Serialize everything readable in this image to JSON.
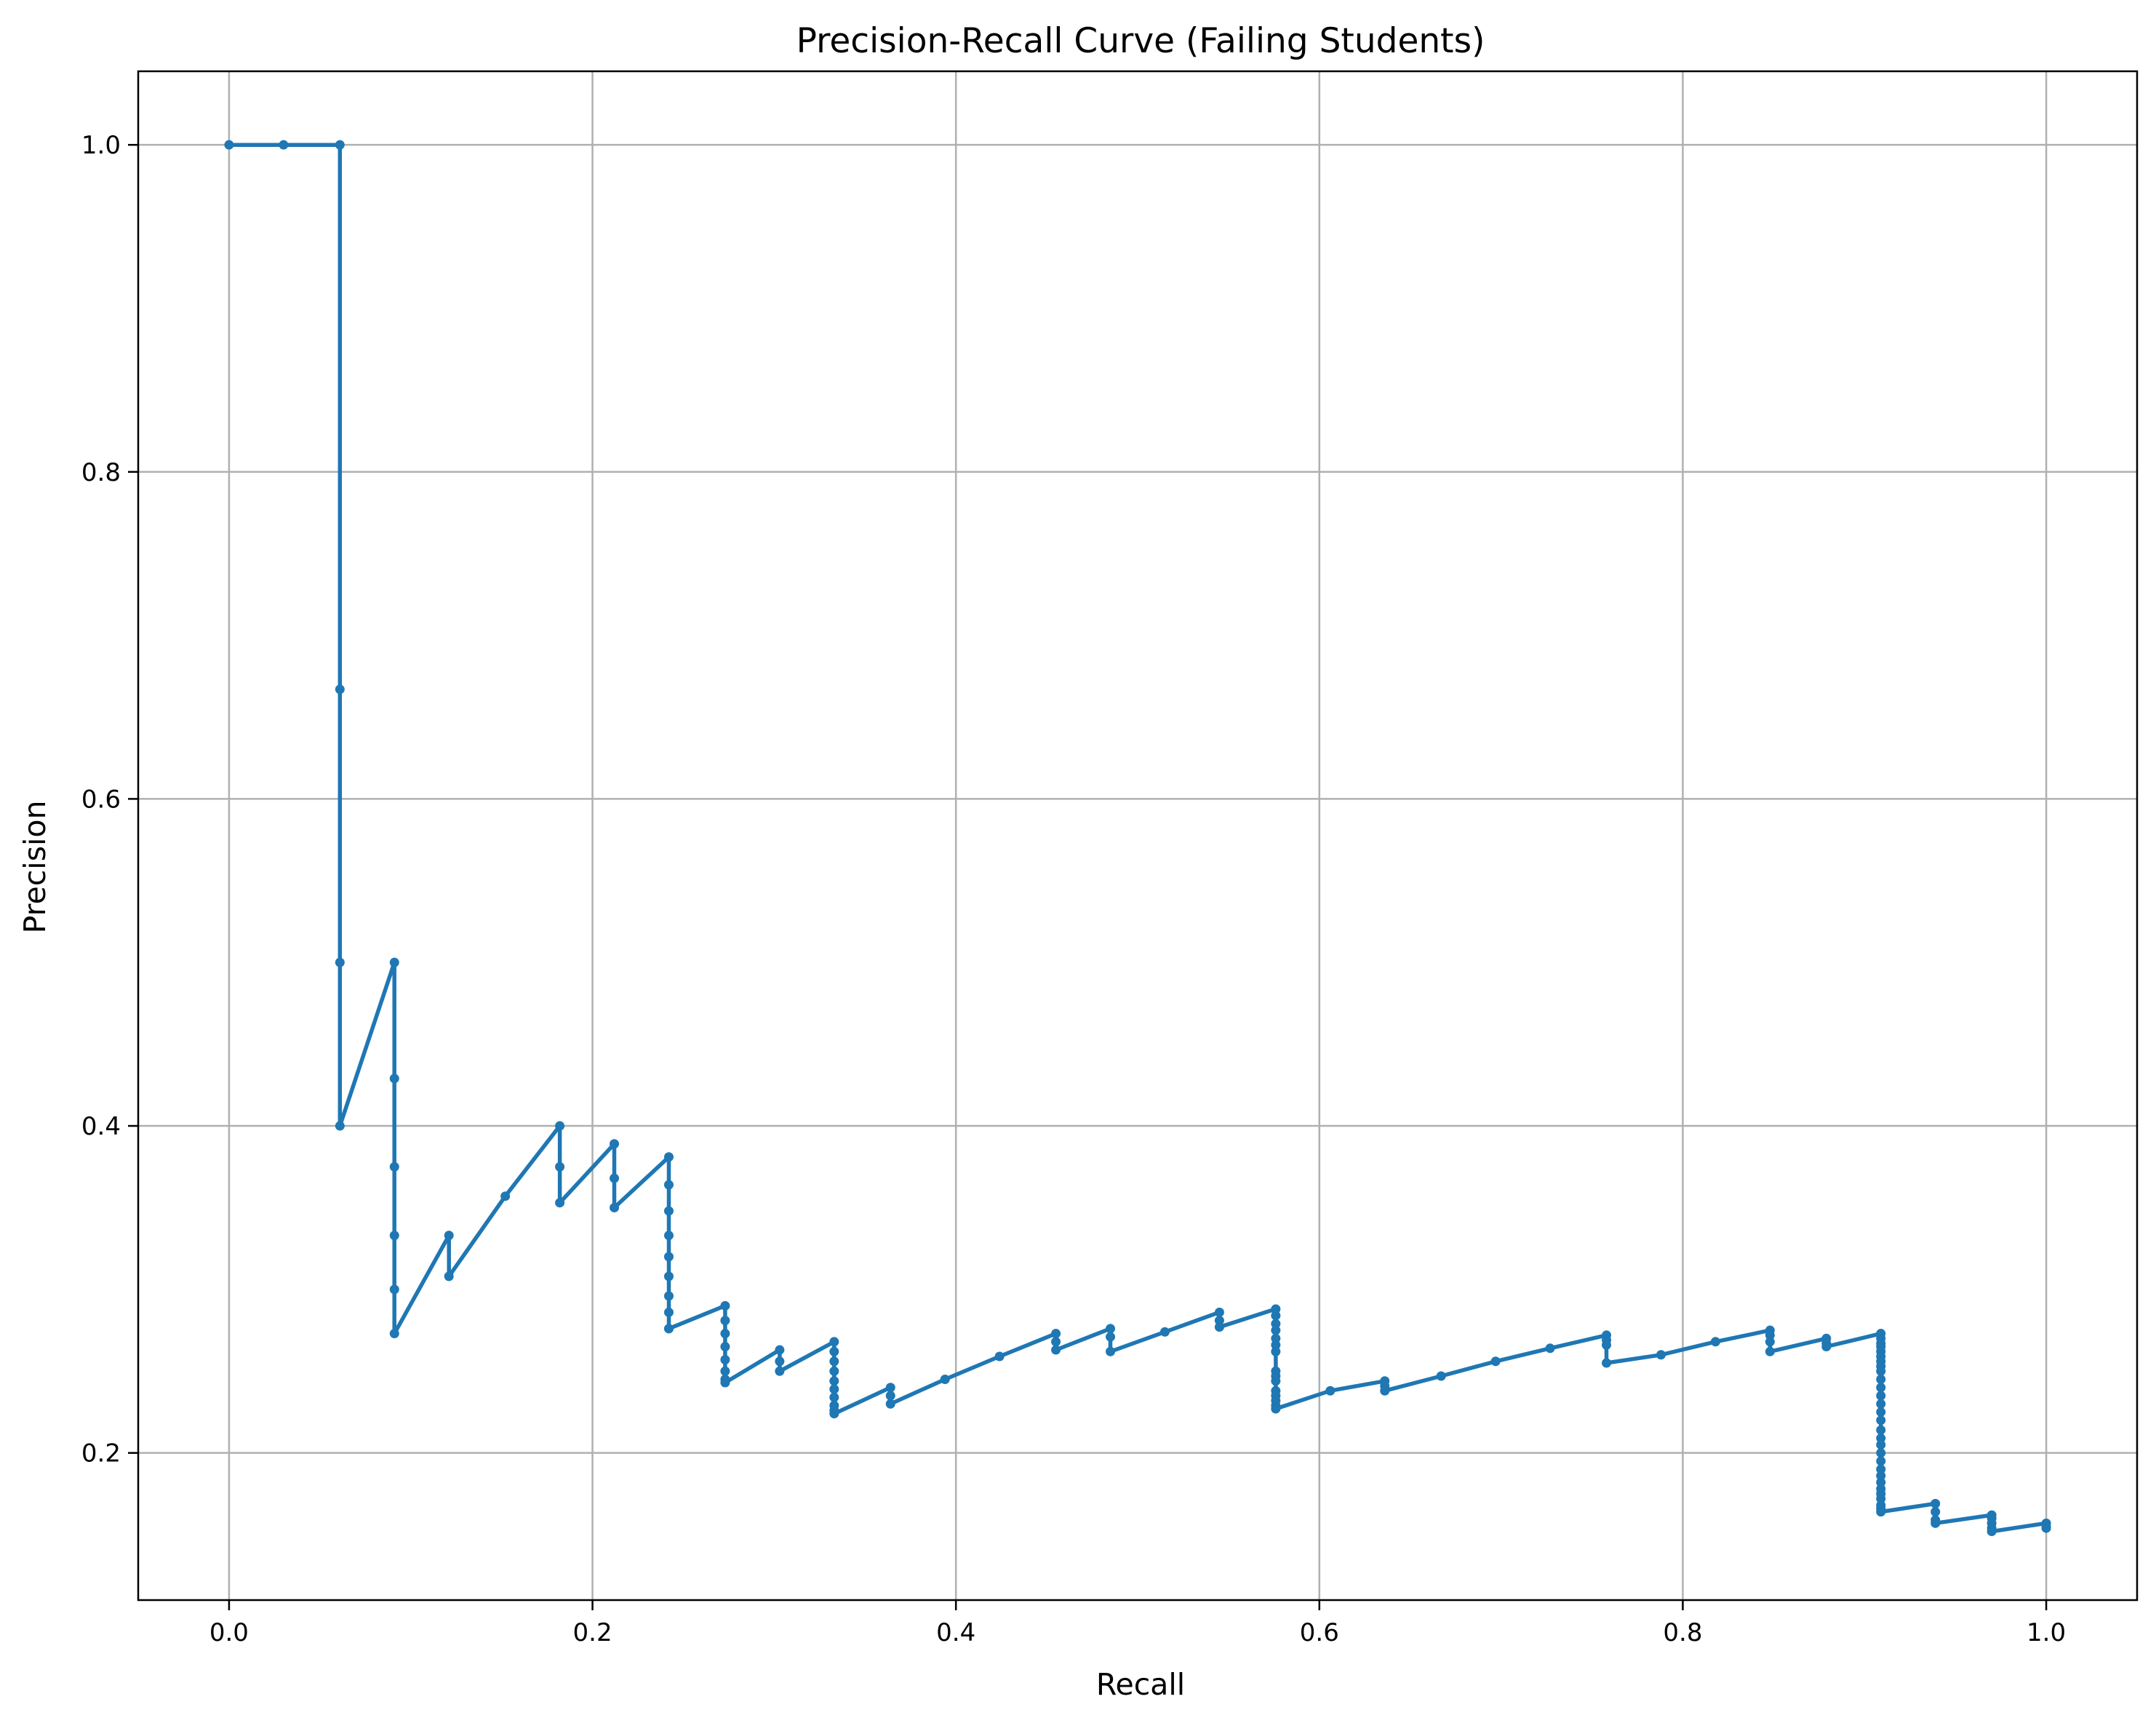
{
  "chart_data": {
    "type": "line",
    "title": "Precision-Recall Curve (Failing Students)",
    "xlabel": "Recall",
    "ylabel": "Precision",
    "xlim": [
      -0.05,
      1.05
    ],
    "ylim": [
      0.11,
      1.045
    ],
    "xticks": [
      0.0,
      0.2,
      0.4,
      0.6,
      0.8,
      1.0
    ],
    "xtick_labels": [
      "0.0",
      "0.2",
      "0.4",
      "0.6",
      "0.8",
      "1.0"
    ],
    "yticks": [
      0.2,
      0.4,
      0.6,
      0.8,
      1.0
    ],
    "ytick_labels": [
      "0.2",
      "0.4",
      "0.6",
      "0.8",
      "1.0"
    ],
    "grid": true,
    "legend": "none",
    "colors": {
      "line": "#1f77b4",
      "grid": "#b0b0b0",
      "axes": "#000000"
    },
    "marker": "point",
    "series": [
      {
        "x": [
          0.0,
          0.03,
          0.061,
          0.061,
          0.061,
          0.061,
          0.091,
          0.091,
          0.091,
          0.091,
          0.091,
          0.091,
          0.121,
          0.121,
          0.152,
          0.182,
          0.182,
          0.182,
          0.212,
          0.212,
          0.212,
          0.242,
          0.242,
          0.242,
          0.242,
          0.242,
          0.242,
          0.242,
          0.242,
          0.242,
          0.242,
          0.273,
          0.273,
          0.273,
          0.273,
          0.273,
          0.273,
          0.273,
          0.273,
          0.303,
          0.303,
          0.303,
          0.333,
          0.333,
          0.333,
          0.333,
          0.333,
          0.333,
          0.333,
          0.333,
          0.333,
          0.333,
          0.364,
          0.364,
          0.364,
          0.394,
          0.424,
          0.455,
          0.455,
          0.455,
          0.485,
          0.485,
          0.485,
          0.515,
          0.545,
          0.545,
          0.545,
          0.576,
          0.576,
          0.576,
          0.576,
          0.576,
          0.576,
          0.576,
          0.576,
          0.576,
          0.576,
          0.576,
          0.576,
          0.576,
          0.576,
          0.576,
          0.606,
          0.636,
          0.636,
          0.636,
          0.667,
          0.697,
          0.727,
          0.758,
          0.758,
          0.758,
          0.758,
          0.788,
          0.818,
          0.848,
          0.848,
          0.848,
          0.848,
          0.879,
          0.879,
          0.879,
          0.909,
          0.909,
          0.909,
          0.909,
          0.909,
          0.909,
          0.909,
          0.909,
          0.909,
          0.909,
          0.909,
          0.909,
          0.909,
          0.909,
          0.909,
          0.909,
          0.909,
          0.909,
          0.909,
          0.909,
          0.909,
          0.909,
          0.909,
          0.909,
          0.909,
          0.909,
          0.909,
          0.909,
          0.909,
          0.939,
          0.939,
          0.939,
          0.939,
          0.97,
          0.97,
          0.97,
          0.97,
          0.97,
          1.0,
          1.0,
          1.0
        ],
        "y": [
          1.0,
          1.0,
          1.0,
          0.667,
          0.5,
          0.4,
          0.5,
          0.429,
          0.375,
          0.333,
          0.3,
          0.273,
          0.333,
          0.308,
          0.357,
          0.4,
          0.375,
          0.353,
          0.389,
          0.368,
          0.35,
          0.381,
          0.364,
          0.348,
          0.333,
          0.32,
          0.308,
          0.296,
          0.286,
          0.276,
          0.276,
          0.29,
          0.281,
          0.273,
          0.265,
          0.257,
          0.25,
          0.245,
          0.243,
          0.263,
          0.256,
          0.25,
          0.268,
          0.262,
          0.256,
          0.25,
          0.244,
          0.239,
          0.234,
          0.229,
          0.226,
          0.224,
          0.24,
          0.235,
          0.23,
          0.245,
          0.259,
          0.273,
          0.268,
          0.263,
          0.276,
          0.271,
          0.262,
          0.274,
          0.286,
          0.281,
          0.277,
          0.288,
          0.284,
          0.279,
          0.275,
          0.27,
          0.266,
          0.262,
          0.25,
          0.247,
          0.244,
          0.238,
          0.235,
          0.232,
          0.229,
          0.227,
          0.238,
          0.244,
          0.241,
          0.238,
          0.247,
          0.256,
          0.264,
          0.272,
          0.269,
          0.266,
          0.255,
          0.26,
          0.268,
          0.275,
          0.272,
          0.268,
          0.262,
          0.27,
          0.267,
          0.265,
          0.273,
          0.27,
          0.267,
          0.265,
          0.262,
          0.259,
          0.256,
          0.253,
          0.25,
          0.245,
          0.24,
          0.235,
          0.23,
          0.225,
          0.22,
          0.214,
          0.209,
          0.205,
          0.2,
          0.195,
          0.19,
          0.186,
          0.182,
          0.178,
          0.175,
          0.172,
          0.168,
          0.166,
          0.164,
          0.169,
          0.164,
          0.159,
          0.157,
          0.162,
          0.16,
          0.157,
          0.154,
          0.152,
          0.157,
          0.155,
          0.154
        ]
      }
    ]
  }
}
